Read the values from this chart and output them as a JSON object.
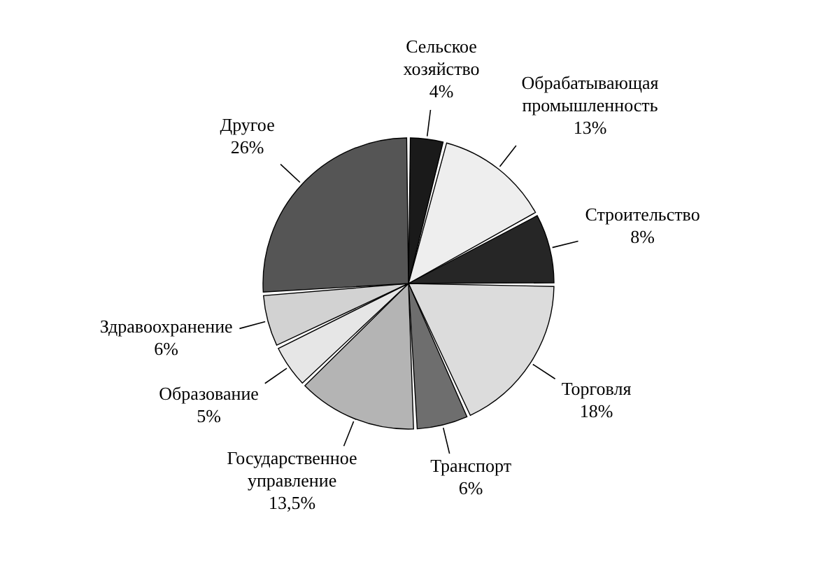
{
  "chart_data": {
    "type": "pie",
    "categories": [
      "Сельское хозяйство",
      "Обрабатывающая промышленность",
      "Строительство",
      "Торговля",
      "Транспорт",
      "Государственное управление",
      "Образование",
      "Здравоохранение",
      "Другое"
    ],
    "values": [
      4,
      13,
      8,
      18,
      6,
      13.5,
      5,
      6,
      26
    ],
    "colors": [
      "#1a1a1a",
      "#eeeeee",
      "#262626",
      "#dcdcdc",
      "#6e6e6e",
      "#b4b4b4",
      "#e6e6e6",
      "#d2d2d2",
      "#555555"
    ],
    "value_labels": [
      "4%",
      "13%",
      "8%",
      "18%",
      "6%",
      "13,5%",
      "5%",
      "6%",
      "26%"
    ]
  }
}
